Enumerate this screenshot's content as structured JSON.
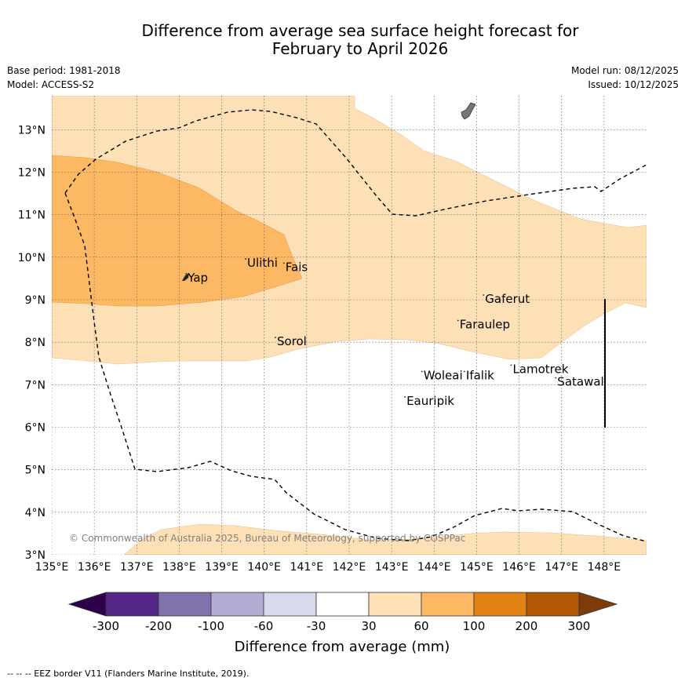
{
  "title": {
    "line1": "Difference from average sea surface height forecast for",
    "line2": "February to April 2026"
  },
  "meta_left": {
    "base_period": "Base period: 1981-2018",
    "model": "Model: ACCESS-S2"
  },
  "meta_right": {
    "model_run": "Model run: 08/12/2025",
    "issued": "Issued: 10/12/2025"
  },
  "map": {
    "lon_range": [
      135,
      149
    ],
    "lat_range": [
      3,
      13.8
    ],
    "lon_ticks": [
      "135°E",
      "136°E",
      "137°E",
      "138°E",
      "139°E",
      "140°E",
      "141°E",
      "142°E",
      "143°E",
      "144°E",
      "145°E",
      "146°E",
      "147°E",
      "148°E"
    ],
    "lat_ticks": [
      "3°N",
      "4°N",
      "5°N",
      "6°N",
      "7°N",
      "8°N",
      "9°N",
      "10°N",
      "11°N",
      "12°N",
      "13°N"
    ],
    "copyright": "© Commonwealth of Australia 2025, Bureau of Meteorology, supported by COSPPac",
    "places": [
      {
        "name": "Yap",
        "lon": 138.2,
        "lat": 9.5
      },
      {
        "name": "Ulithi",
        "lon": 139.6,
        "lat": 9.85
      },
      {
        "name": "Fais",
        "lon": 140.5,
        "lat": 9.75
      },
      {
        "name": "Gaferut",
        "lon": 145.2,
        "lat": 9.0
      },
      {
        "name": "Faraulep",
        "lon": 144.6,
        "lat": 8.4
      },
      {
        "name": "Sorol",
        "lon": 140.3,
        "lat": 8.0
      },
      {
        "name": "Woleai",
        "lon": 143.75,
        "lat": 7.2
      },
      {
        "name": "Ifalik",
        "lon": 144.75,
        "lat": 7.2
      },
      {
        "name": "Lamotrek",
        "lon": 145.85,
        "lat": 7.35
      },
      {
        "name": "Satawal",
        "lon": 146.9,
        "lat": 7.05
      },
      {
        "name": "Eauripik",
        "lon": 143.35,
        "lat": 6.6
      }
    ]
  },
  "colorbar": {
    "ticks": [
      "-300",
      "-200",
      "-100",
      "-60",
      "-30",
      "30",
      "60",
      "100",
      "200",
      "300"
    ],
    "colors": [
      "#2d004b",
      "#542788",
      "#8073ac",
      "#b2abd2",
      "#d8daeb",
      "#ffffff",
      "#fee0b6",
      "#fdb863",
      "#e08214",
      "#b35806",
      "#7f3b08"
    ],
    "label": "Difference from average (mm)"
  },
  "footer": {
    "legend_line": "--  --  -- EEZ border V11 (Flanders Marine Institute, 2019)."
  }
}
